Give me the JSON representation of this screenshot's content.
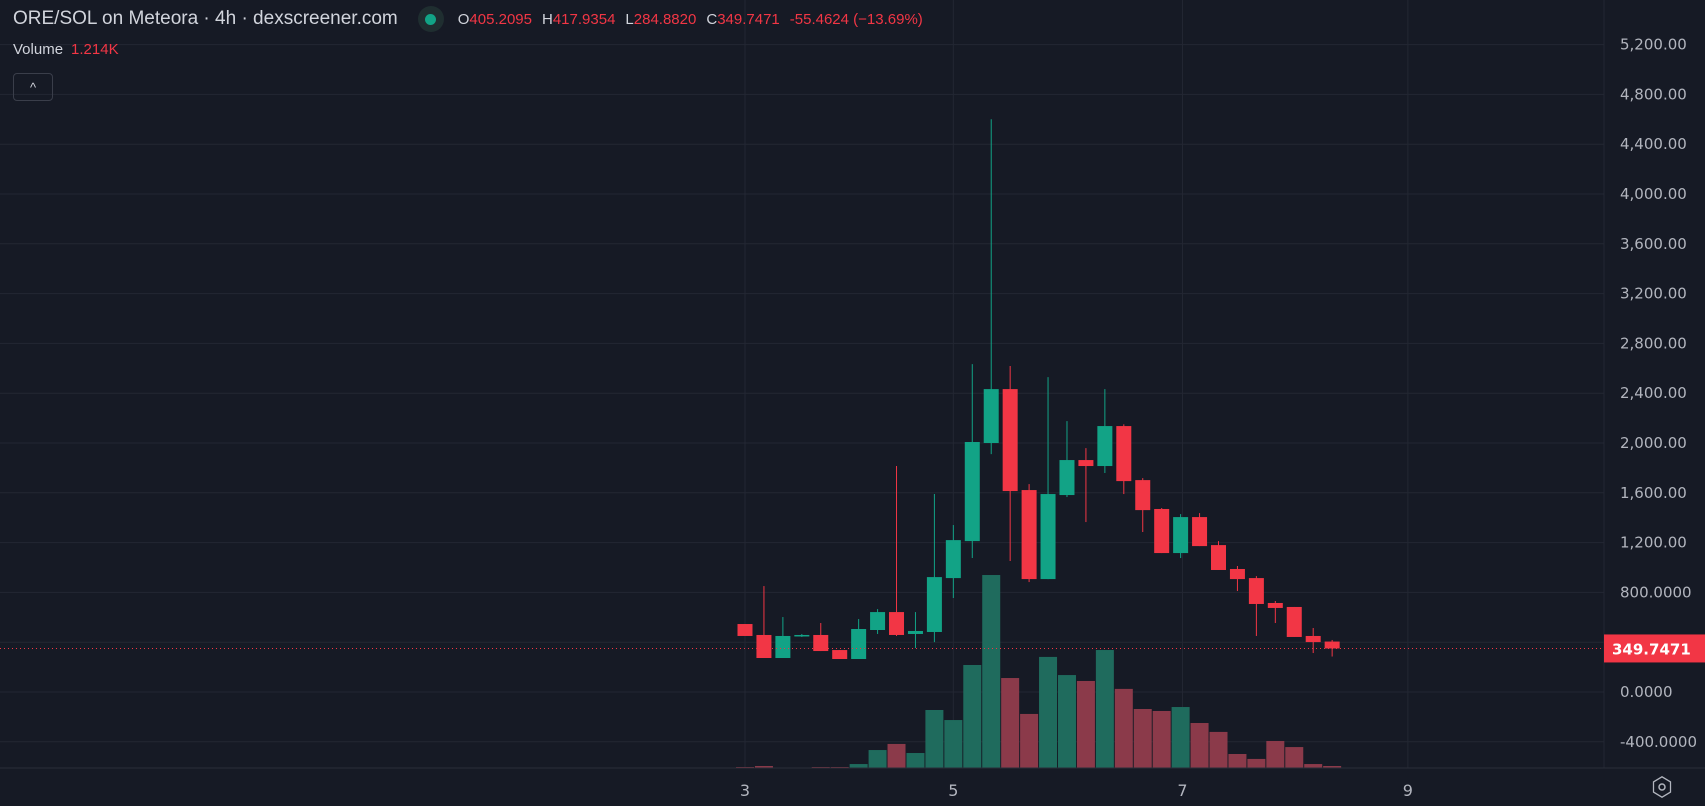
{
  "header": {
    "title": "ORE/SOL on Meteora · 4h · dexscreener.com",
    "ohlc": {
      "o_label": "O",
      "o_value": "405.2095",
      "h_label": "H",
      "h_value": "417.9354",
      "l_label": "L",
      "l_value": "284.8820",
      "c_label": "C",
      "c_value": "349.7471",
      "change": "-55.4624 (−13.69%)"
    },
    "volume_label": "Volume",
    "volume_value": "1.214K",
    "collapse_icon": "chevron-up-icon",
    "collapse_glyph": "^"
  },
  "price_tag": "349.7471",
  "colors": {
    "background": "#161a25",
    "up": "#12a386",
    "down": "#f23645",
    "volume_up": "#1f6b5d",
    "volume_down": "#8b3a4a",
    "grid": "#232733"
  },
  "chart_data": {
    "type": "candlestick",
    "title": "ORE/SOL on Meteora · 4h · dexscreener.com",
    "ylim": [
      -600,
      5400
    ],
    "y_ticks": [
      {
        "value": 5200,
        "label": "5,200.00"
      },
      {
        "value": 4800,
        "label": "4,800.00"
      },
      {
        "value": 4400,
        "label": "4,400.00"
      },
      {
        "value": 4000,
        "label": "4,000.00"
      },
      {
        "value": 3600,
        "label": "3,600.00"
      },
      {
        "value": 3200,
        "label": "3,200.00"
      },
      {
        "value": 2800,
        "label": "2,800.00"
      },
      {
        "value": 2400,
        "label": "2,400.00"
      },
      {
        "value": 2000,
        "label": "2,000.00"
      },
      {
        "value": 1600,
        "label": "1,600.00"
      },
      {
        "value": 1200,
        "label": "1,200.00"
      },
      {
        "value": 800,
        "label": "800.0000"
      },
      {
        "value": 400,
        "label": ""
      },
      {
        "value": 0,
        "label": "0.0000"
      },
      {
        "value": -400,
        "label": "-400.0000"
      }
    ],
    "x_ticks": [
      {
        "index": 0,
        "label": "3"
      },
      {
        "index": 11,
        "label": "5"
      },
      {
        "index": 23.1,
        "label": "7"
      },
      {
        "index": 35,
        "label": "9"
      }
    ],
    "last_price": 349.7471,
    "candles": [
      {
        "o": 546,
        "h": 546,
        "l": 450,
        "c": 450,
        "vol": 0.6
      },
      {
        "o": 458,
        "h": 851,
        "l": 273,
        "c": 273,
        "vol": 1.2
      },
      {
        "o": 273,
        "h": 602,
        "l": 273,
        "c": 450,
        "vol": 0.3
      },
      {
        "o": 450,
        "h": 466,
        "l": 442,
        "c": 458,
        "vol": 0.3
      },
      {
        "o": 458,
        "h": 554,
        "l": 329,
        "c": 329,
        "vol": 0.6
      },
      {
        "o": 337,
        "h": 337,
        "l": 265,
        "c": 265,
        "vol": 0.6
      },
      {
        "o": 265,
        "h": 586,
        "l": 265,
        "c": 506,
        "vol": 2.4
      },
      {
        "o": 498,
        "h": 666,
        "l": 466,
        "c": 642,
        "vol": 10.9
      },
      {
        "o": 642,
        "h": 1815,
        "l": 450,
        "c": 458,
        "vol": 14.6
      },
      {
        "o": 466,
        "h": 642,
        "l": 353,
        "c": 490,
        "vol": 9.1
      },
      {
        "o": 482,
        "h": 1590,
        "l": 401,
        "c": 923,
        "vol": 35.2
      },
      {
        "o": 915,
        "h": 1341,
        "l": 755,
        "c": 1220,
        "vol": 29.1
      },
      {
        "o": 1212,
        "h": 2634,
        "l": 1076,
        "c": 2008,
        "vol": 62.5
      },
      {
        "o": 2000,
        "h": 4600,
        "l": 1911,
        "c": 2433,
        "vol": 117.1
      },
      {
        "o": 2433,
        "h": 2618,
        "l": 1052,
        "c": 1614,
        "vol": 54.6
      },
      {
        "o": 1622,
        "h": 1670,
        "l": 883,
        "c": 907,
        "vol": 32.8
      },
      {
        "o": 907,
        "h": 2529,
        "l": 907,
        "c": 1590,
        "vol": 67.4
      },
      {
        "o": 1582,
        "h": 2176,
        "l": 1566,
        "c": 1863,
        "vol": 56.4
      },
      {
        "o": 1863,
        "h": 1959,
        "l": 1365,
        "c": 1815,
        "vol": 52.8
      },
      {
        "o": 1815,
        "h": 2433,
        "l": 1759,
        "c": 2136,
        "vol": 71.6
      },
      {
        "o": 2136,
        "h": 2150,
        "l": 1590,
        "c": 1694,
        "vol": 48.0
      },
      {
        "o": 1702,
        "h": 1718,
        "l": 1285,
        "c": 1461,
        "vol": 35.8
      },
      {
        "o": 1470,
        "h": 1478,
        "l": 1116,
        "c": 1116,
        "vol": 34.6
      },
      {
        "o": 1116,
        "h": 1429,
        "l": 1076,
        "c": 1405,
        "vol": 37.0
      },
      {
        "o": 1405,
        "h": 1437,
        "l": 1172,
        "c": 1172,
        "vol": 27.3
      },
      {
        "o": 1180,
        "h": 1212,
        "l": 980,
        "c": 980,
        "vol": 21.9
      },
      {
        "o": 988,
        "h": 1012,
        "l": 811,
        "c": 907,
        "vol": 8.5
      },
      {
        "o": 915,
        "h": 931,
        "l": 450,
        "c": 707,
        "vol": 5.5
      },
      {
        "o": 715,
        "h": 731,
        "l": 554,
        "c": 675,
        "vol": 16.4
      },
      {
        "o": 683,
        "h": 683,
        "l": 442,
        "c": 442,
        "vol": 12.7
      },
      {
        "o": 450,
        "h": 514,
        "l": 313,
        "c": 401,
        "vol": 2.4
      },
      {
        "o": 405.2095,
        "h": 417.9354,
        "l": 284.882,
        "c": 349.7471,
        "vol": 1.214
      }
    ],
    "volume_unit": "K",
    "grid": true
  },
  "settings_icon": "settings-hexagon-icon"
}
